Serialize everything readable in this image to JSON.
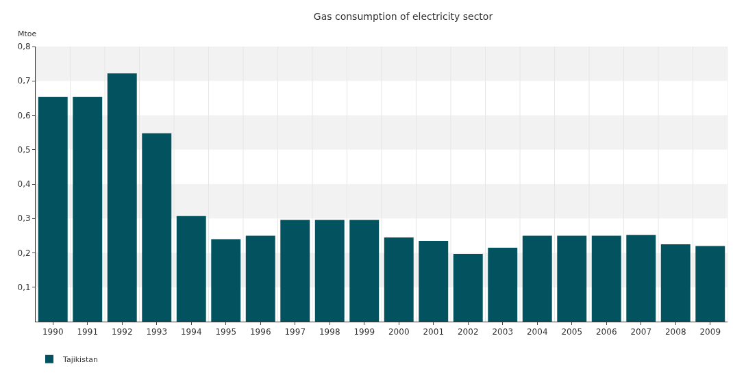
{
  "chart_data": {
    "type": "bar",
    "title": "Gas consumption of electricity sector",
    "ylabel": "Mtoe",
    "categories": [
      "1990",
      "1991",
      "1992",
      "1993",
      "1994",
      "1995",
      "1996",
      "1997",
      "1998",
      "1999",
      "2000",
      "2001",
      "2002",
      "2003",
      "2004",
      "2005",
      "2006",
      "2007",
      "2008",
      "2009"
    ],
    "series": [
      {
        "name": "Tajikistan",
        "color": "#02535f",
        "values": [
          0.653,
          0.653,
          0.722,
          0.548,
          0.307,
          0.24,
          0.25,
          0.296,
          0.296,
          0.296,
          0.245,
          0.235,
          0.197,
          0.215,
          0.25,
          0.25,
          0.25,
          0.252,
          0.225,
          0.22
        ]
      }
    ],
    "ylim": [
      0,
      0.8
    ],
    "yticks": [
      {
        "value": 0.1,
        "label": "0,1"
      },
      {
        "value": 0.2,
        "label": "0,2"
      },
      {
        "value": 0.3,
        "label": "0,3"
      },
      {
        "value": 0.4,
        "label": "0,4"
      },
      {
        "value": 0.5,
        "label": "0,5"
      },
      {
        "value": 0.6,
        "label": "0,6"
      },
      {
        "value": 0.7,
        "label": "0,7"
      },
      {
        "value": 0.8,
        "label": "0,8"
      }
    ],
    "grid": true,
    "legend": "bottom left"
  }
}
